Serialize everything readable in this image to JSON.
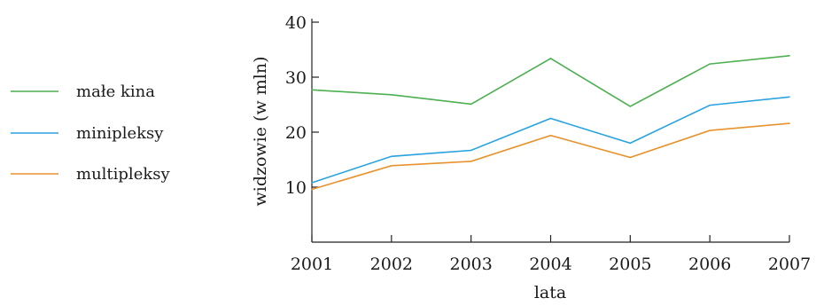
{
  "chart_data": {
    "type": "line",
    "x": [
      2001,
      2002,
      2003,
      2004,
      2005,
      2006,
      2007
    ],
    "categories": [
      "2001",
      "2002",
      "2003",
      "2004",
      "2005",
      "2006",
      "2007"
    ],
    "series": [
      {
        "name": "małe kina",
        "color": "#4caf50",
        "values": [
          27.7,
          26.8,
          25.1,
          33.4,
          24.7,
          32.4,
          33.9
        ]
      },
      {
        "name": "minipleksy",
        "color": "#29a3e0",
        "values": [
          10.8,
          15.6,
          16.7,
          22.5,
          18.0,
          24.9,
          26.4
        ]
      },
      {
        "name": "multipleksy",
        "color": "#e8922e",
        "values": [
          9.6,
          13.9,
          14.7,
          19.4,
          15.4,
          20.3,
          21.6
        ]
      }
    ],
    "title": "",
    "xlabel": "lata",
    "ylabel": "widzowie (w mln)",
    "ylim": [
      0,
      40
    ],
    "yticks": [
      10,
      20,
      30,
      40
    ],
    "grid": false,
    "legend": "left"
  }
}
